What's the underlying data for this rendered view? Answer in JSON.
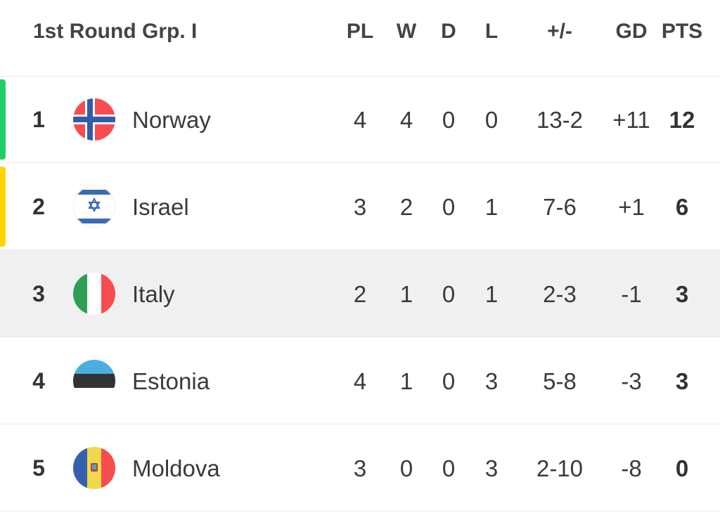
{
  "header": {
    "title": "1st Round Grp. I",
    "columns": [
      "PL",
      "W",
      "D",
      "L",
      "+/-",
      "GD",
      "PTS"
    ]
  },
  "colors": {
    "qualify": "#22cc66",
    "playoff": "#ffd500",
    "highlight_row": "#f0f0f0"
  },
  "rows": [
    {
      "rank": "1",
      "team": "Norway",
      "flag": "norway-flag",
      "pl": "4",
      "w": "4",
      "d": "0",
      "l": "0",
      "goals": "13-2",
      "gd": "+11",
      "pts": "12",
      "marker": "qualify"
    },
    {
      "rank": "2",
      "team": "Israel",
      "flag": "israel-flag",
      "pl": "3",
      "w": "2",
      "d": "0",
      "l": "1",
      "goals": "7-6",
      "gd": "+1",
      "pts": "6",
      "marker": "playoff"
    },
    {
      "rank": "3",
      "team": "Italy",
      "flag": "italy-flag",
      "pl": "2",
      "w": "1",
      "d": "0",
      "l": "1",
      "goals": "2-3",
      "gd": "-1",
      "pts": "3",
      "highlighted": true
    },
    {
      "rank": "4",
      "team": "Estonia",
      "flag": "estonia-flag",
      "pl": "4",
      "w": "1",
      "d": "0",
      "l": "3",
      "goals": "5-8",
      "gd": "-3",
      "pts": "3"
    },
    {
      "rank": "5",
      "team": "Moldova",
      "flag": "moldova-flag",
      "pl": "3",
      "w": "0",
      "d": "0",
      "l": "3",
      "goals": "2-10",
      "gd": "-8",
      "pts": "0"
    }
  ]
}
